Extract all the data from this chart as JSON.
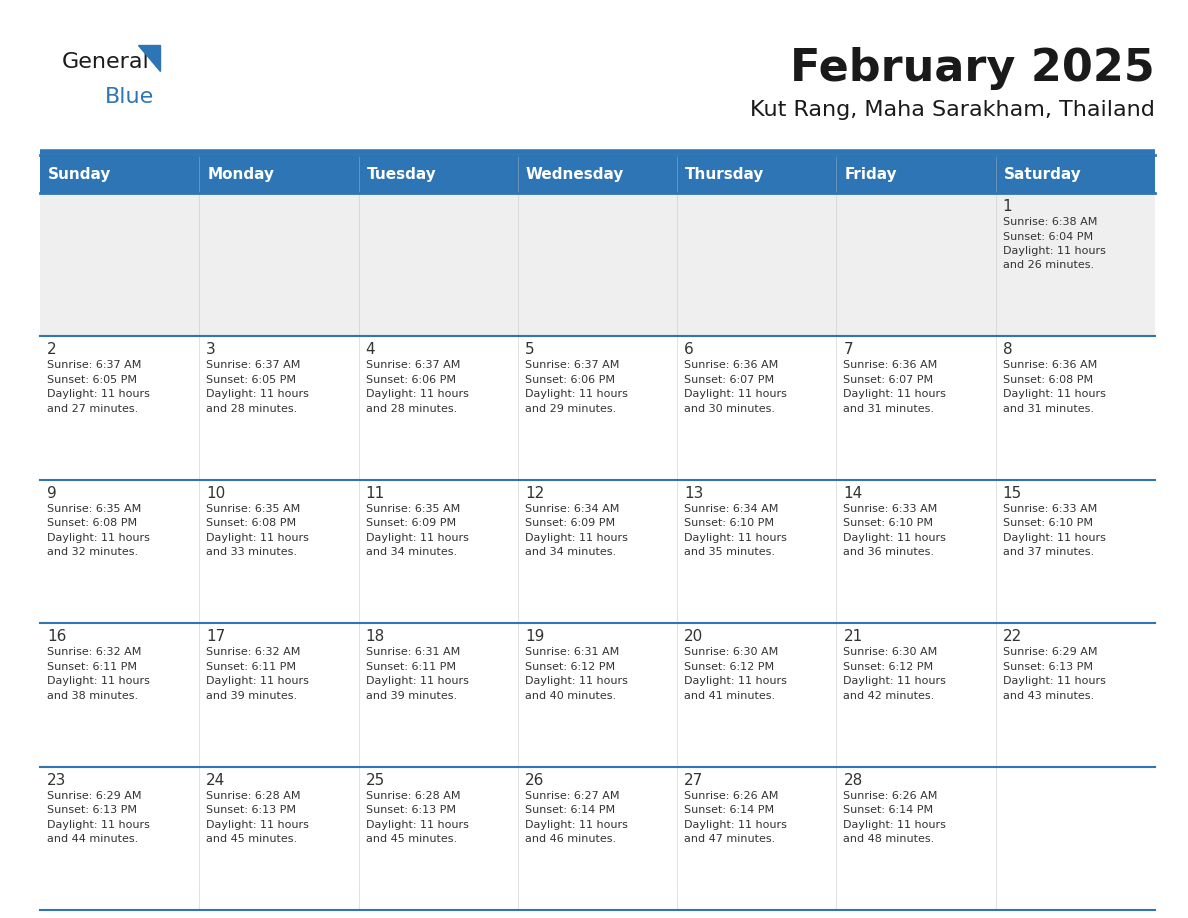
{
  "title": "February 2025",
  "subtitle": "Kut Rang, Maha Sarakham, Thailand",
  "header_bg_color": "#2E75B6",
  "header_text_color": "#FFFFFF",
  "cell_bg_color": "#FFFFFF",
  "alt_cell_bg_color": "#EFEFEF",
  "day_names": [
    "Sunday",
    "Monday",
    "Tuesday",
    "Wednesday",
    "Thursday",
    "Friday",
    "Saturday"
  ],
  "calendar_data": [
    [
      null,
      null,
      null,
      null,
      null,
      null,
      {
        "day": 1,
        "sunrise": "6:38 AM",
        "sunset": "6:04 PM",
        "daylight": "11 hours and 26 minutes."
      }
    ],
    [
      {
        "day": 2,
        "sunrise": "6:37 AM",
        "sunset": "6:05 PM",
        "daylight": "11 hours and 27 minutes."
      },
      {
        "day": 3,
        "sunrise": "6:37 AM",
        "sunset": "6:05 PM",
        "daylight": "11 hours and 28 minutes."
      },
      {
        "day": 4,
        "sunrise": "6:37 AM",
        "sunset": "6:06 PM",
        "daylight": "11 hours and 28 minutes."
      },
      {
        "day": 5,
        "sunrise": "6:37 AM",
        "sunset": "6:06 PM",
        "daylight": "11 hours and 29 minutes."
      },
      {
        "day": 6,
        "sunrise": "6:36 AM",
        "sunset": "6:07 PM",
        "daylight": "11 hours and 30 minutes."
      },
      {
        "day": 7,
        "sunrise": "6:36 AM",
        "sunset": "6:07 PM",
        "daylight": "11 hours and 31 minutes."
      },
      {
        "day": 8,
        "sunrise": "6:36 AM",
        "sunset": "6:08 PM",
        "daylight": "11 hours and 31 minutes."
      }
    ],
    [
      {
        "day": 9,
        "sunrise": "6:35 AM",
        "sunset": "6:08 PM",
        "daylight": "11 hours and 32 minutes."
      },
      {
        "day": 10,
        "sunrise": "6:35 AM",
        "sunset": "6:08 PM",
        "daylight": "11 hours and 33 minutes."
      },
      {
        "day": 11,
        "sunrise": "6:35 AM",
        "sunset": "6:09 PM",
        "daylight": "11 hours and 34 minutes."
      },
      {
        "day": 12,
        "sunrise": "6:34 AM",
        "sunset": "6:09 PM",
        "daylight": "11 hours and 34 minutes."
      },
      {
        "day": 13,
        "sunrise": "6:34 AM",
        "sunset": "6:10 PM",
        "daylight": "11 hours and 35 minutes."
      },
      {
        "day": 14,
        "sunrise": "6:33 AM",
        "sunset": "6:10 PM",
        "daylight": "11 hours and 36 minutes."
      },
      {
        "day": 15,
        "sunrise": "6:33 AM",
        "sunset": "6:10 PM",
        "daylight": "11 hours and 37 minutes."
      }
    ],
    [
      {
        "day": 16,
        "sunrise": "6:32 AM",
        "sunset": "6:11 PM",
        "daylight": "11 hours and 38 minutes."
      },
      {
        "day": 17,
        "sunrise": "6:32 AM",
        "sunset": "6:11 PM",
        "daylight": "11 hours and 39 minutes."
      },
      {
        "day": 18,
        "sunrise": "6:31 AM",
        "sunset": "6:11 PM",
        "daylight": "11 hours and 39 minutes."
      },
      {
        "day": 19,
        "sunrise": "6:31 AM",
        "sunset": "6:12 PM",
        "daylight": "11 hours and 40 minutes."
      },
      {
        "day": 20,
        "sunrise": "6:30 AM",
        "sunset": "6:12 PM",
        "daylight": "11 hours and 41 minutes."
      },
      {
        "day": 21,
        "sunrise": "6:30 AM",
        "sunset": "6:12 PM",
        "daylight": "11 hours and 42 minutes."
      },
      {
        "day": 22,
        "sunrise": "6:29 AM",
        "sunset": "6:13 PM",
        "daylight": "11 hours and 43 minutes."
      }
    ],
    [
      {
        "day": 23,
        "sunrise": "6:29 AM",
        "sunset": "6:13 PM",
        "daylight": "11 hours and 44 minutes."
      },
      {
        "day": 24,
        "sunrise": "6:28 AM",
        "sunset": "6:13 PM",
        "daylight": "11 hours and 45 minutes."
      },
      {
        "day": 25,
        "sunrise": "6:28 AM",
        "sunset": "6:13 PM",
        "daylight": "11 hours and 45 minutes."
      },
      {
        "day": 26,
        "sunrise": "6:27 AM",
        "sunset": "6:14 PM",
        "daylight": "11 hours and 46 minutes."
      },
      {
        "day": 27,
        "sunrise": "6:26 AM",
        "sunset": "6:14 PM",
        "daylight": "11 hours and 47 minutes."
      },
      {
        "day": 28,
        "sunrise": "6:26 AM",
        "sunset": "6:14 PM",
        "daylight": "11 hours and 48 minutes."
      },
      null
    ]
  ],
  "border_color": "#2E75B6",
  "text_color": "#1a1a1a",
  "cell_text_color": "#333333",
  "logo_color_general": "#1a1a1a",
  "logo_color_blue": "#2E75B6",
  "logo_triangle_color": "#2E75B6",
  "title_fontsize": 32,
  "subtitle_fontsize": 16,
  "day_name_fontsize": 11,
  "day_num_fontsize": 11,
  "cell_text_fontsize": 8
}
